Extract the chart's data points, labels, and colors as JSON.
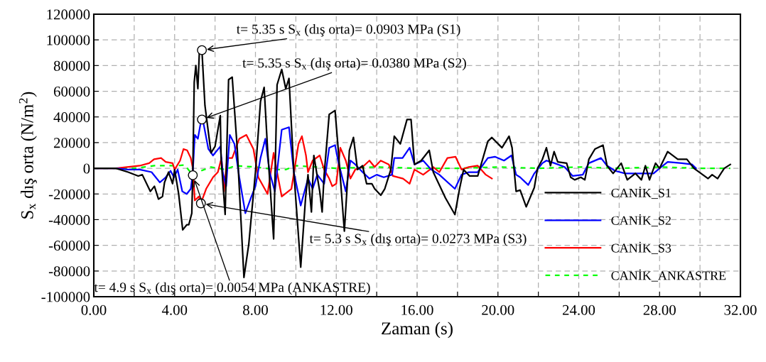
{
  "chart_data": {
    "type": "line",
    "xlabel": "Zaman (s)",
    "ylabel": "S$_{x}$ dış orta (N/m$^{2}$)",
    "xlim": [
      0,
      32
    ],
    "ylim": [
      -100000,
      120000
    ],
    "xticks": [
      {
        "value": 0,
        "label": "0.00"
      },
      {
        "value": 2,
        "label": null
      },
      {
        "value": 4,
        "label": "4.00"
      },
      {
        "value": 6,
        "label": null
      },
      {
        "value": 8,
        "label": "8.00"
      },
      {
        "value": 10,
        "label": null
      },
      {
        "value": 12,
        "label": "12.00"
      },
      {
        "value": 14,
        "label": null
      },
      {
        "value": 16,
        "label": "16.00"
      },
      {
        "value": 18,
        "label": null
      },
      {
        "value": 20,
        "label": "20.00"
      },
      {
        "value": 22,
        "label": null
      },
      {
        "value": 24,
        "label": "24.00"
      },
      {
        "value": 26,
        "label": null
      },
      {
        "value": 28,
        "label": "28.00"
      },
      {
        "value": 30,
        "label": null
      },
      {
        "value": 32,
        "label": "32.00"
      }
    ],
    "yticks": [
      -100000,
      -80000,
      -60000,
      -40000,
      -20000,
      0,
      20000,
      40000,
      60000,
      80000,
      100000,
      120000
    ],
    "grid": true,
    "legend": "lower right",
    "marker": "none",
    "series": [
      {
        "name": "CANİK_S1",
        "color": "#000000",
        "line_style": "solid",
        "x": [
          0,
          1.1,
          1.7,
          2.2,
          2.4,
          2.8,
          3.0,
          3.2,
          3.4,
          3.5,
          3.7,
          3.9,
          4.0,
          4.2,
          4.4,
          4.6,
          4.7,
          4.85,
          4.9,
          4.97,
          5.05,
          5.15,
          5.23,
          5.35,
          5.5,
          5.8,
          6.0,
          6.26,
          6.3,
          6.5,
          6.67,
          6.85,
          7.1,
          7.43,
          7.67,
          8.0,
          8.25,
          8.43,
          8.6,
          8.9,
          9.07,
          9.3,
          9.5,
          9.66,
          9.9,
          10.24,
          10.48,
          10.6,
          10.77,
          10.89,
          11.18,
          11.3,
          11.4,
          11.65,
          11.94,
          12.1,
          12.4,
          12.65,
          12.85,
          13.05,
          13.3,
          13.5,
          13.76,
          13.9,
          14.2,
          14.4,
          14.7,
          14.87,
          15.17,
          15.5,
          15.7,
          15.87,
          16.2,
          16.6,
          16.8,
          17.4,
          17.87,
          18.1,
          18.3,
          18.6,
          19.0,
          19.5,
          19.7,
          20.2,
          20.55,
          20.7,
          20.9,
          21.1,
          21.4,
          21.8,
          21.96,
          22.2,
          22.4,
          22.6,
          22.78,
          22.96,
          23.4,
          23.6,
          23.8,
          24.1,
          24.3,
          24.5,
          24.8,
          25.2,
          25.4,
          25.7,
          26.1,
          26.4,
          26.8,
          27.1,
          27.3,
          27.5,
          27.8,
          28.0,
          28.4,
          28.9,
          29.35,
          29.7,
          30.05,
          30.4,
          30.6,
          30.87,
          31.2,
          31.5
        ],
        "values": [
          0,
          0,
          -3000,
          -6000,
          -5000,
          -18000,
          -14000,
          -24000,
          -22000,
          -11000,
          -3000,
          -12000,
          -1000,
          -20000,
          -48000,
          -44000,
          -44000,
          -35000,
          -3000,
          67000,
          80000,
          62000,
          93000,
          92000,
          49000,
          12000,
          17000,
          41000,
          8000,
          -36000,
          69000,
          71000,
          15000,
          -85000,
          -59000,
          -3000,
          52000,
          63000,
          15000,
          -55000,
          65000,
          77000,
          62000,
          70000,
          -3000,
          -77000,
          -23000,
          -5000,
          -34000,
          10000,
          -18000,
          -34000,
          -5000,
          42000,
          45000,
          14000,
          -49000,
          14000,
          24000,
          -1000,
          2000,
          -12000,
          -12000,
          -16000,
          -21000,
          -16000,
          -1000,
          25000,
          19000,
          38000,
          38000,
          3000,
          6000,
          14000,
          -3000,
          -23000,
          -36000,
          -16000,
          -1000,
          -6000,
          -6000,
          21000,
          24000,
          16000,
          25000,
          16000,
          -18000,
          -17000,
          -30000,
          -15000,
          0,
          7000,
          16000,
          2000,
          13000,
          5000,
          4000,
          -7000,
          -9000,
          -7000,
          -9000,
          7000,
          15000,
          18000,
          2000,
          -4000,
          4000,
          -9000,
          -4000,
          -9000,
          2000,
          -9000,
          4000,
          0,
          13000,
          7000,
          7000,
          0,
          -4000,
          -8000,
          -5000,
          -8000,
          0,
          3000
        ]
      },
      {
        "name": "CANİK_S2",
        "color": "#0000ff",
        "line_style": "solid",
        "x": [
          0,
          1.1,
          1.7,
          2.27,
          2.86,
          3.27,
          3.56,
          3.8,
          3.97,
          4.15,
          4.38,
          4.6,
          4.8,
          4.9,
          5.0,
          5.15,
          5.32,
          5.44,
          5.67,
          5.9,
          6.26,
          6.38,
          6.55,
          6.73,
          6.96,
          7.2,
          7.5,
          7.8,
          8.0,
          8.25,
          8.49,
          8.7,
          8.96,
          9.3,
          9.66,
          9.9,
          10.24,
          10.6,
          10.83,
          11.06,
          11.4,
          11.65,
          11.94,
          12.1,
          12.47,
          12.7,
          12.94,
          13.3,
          13.64,
          14.0,
          14.35,
          14.76,
          14.87,
          15.28,
          15.63,
          15.87,
          16.3,
          16.7,
          17.1,
          17.87,
          18.2,
          18.56,
          19.0,
          19.5,
          19.85,
          20.3,
          20.67,
          20.9,
          21.1,
          21.5,
          21.8,
          22.2,
          22.4,
          22.8,
          23.3,
          23.7,
          24.2,
          24.5,
          25.1,
          25.4,
          25.8,
          26.3,
          27.0,
          27.7,
          28.0,
          28.4,
          29.1,
          29.6,
          29.8
        ],
        "values": [
          0,
          0,
          -1000,
          -1000,
          -3000,
          -11000,
          -7000,
          -2000,
          -7000,
          -1000,
          -18000,
          -20000,
          -16000,
          -3000,
          26000,
          23000,
          38000,
          34000,
          15000,
          10000,
          17000,
          -3000,
          -14000,
          26000,
          19000,
          -7000,
          -35000,
          -22000,
          -14000,
          8000,
          23000,
          -3000,
          -18000,
          30000,
          32000,
          -3000,
          -29000,
          -8000,
          -16000,
          -5000,
          -12000,
          16000,
          18000,
          5000,
          -18000,
          6000,
          3000,
          -3000,
          -8000,
          -5000,
          -7000,
          -5000,
          8000,
          8000,
          16000,
          3000,
          6000,
          -1000,
          -5000,
          -16000,
          -5000,
          -3000,
          -3000,
          8000,
          9000,
          6000,
          10000,
          -5000,
          -7000,
          -13000,
          -4000,
          4000,
          6000,
          4000,
          1000,
          -6000,
          -5000,
          4000,
          8000,
          2000,
          -2000,
          -4000,
          -4000,
          -4000,
          0,
          5000,
          4000,
          3000,
          0
        ]
      },
      {
        "name": "CANİK_S3",
        "color": "#ff0000",
        "line_style": "solid",
        "x": [
          0,
          1.1,
          2.27,
          2.74,
          2.98,
          3.33,
          3.56,
          3.9,
          4.0,
          4.27,
          4.44,
          4.62,
          4.8,
          4.9,
          5.0,
          5.2,
          5.3,
          5.56,
          5.9,
          6.14,
          6.32,
          6.44,
          6.6,
          6.85,
          7.2,
          7.55,
          7.9,
          8.14,
          8.6,
          8.9,
          9.07,
          9.3,
          9.78,
          10.13,
          10.3,
          10.5,
          10.6,
          10.83,
          11.18,
          11.4,
          11.65,
          11.8,
          12.0,
          12.2,
          12.47,
          12.7,
          12.94,
          13.3,
          13.64,
          13.9,
          14.2,
          14.6,
          14.8,
          15.3,
          15.63,
          15.87,
          16.3,
          16.8,
          17.1,
          17.5,
          17.9,
          18.2,
          18.56,
          19.0,
          19.4,
          19.7
        ],
        "values": [
          0,
          0,
          2000,
          4000,
          7000,
          8000,
          5000,
          4000,
          -1000,
          6000,
          15000,
          14000,
          8000,
          0,
          -25000,
          -22000,
          -27300,
          -16000,
          -7000,
          -3000,
          8000,
          -18000,
          8000,
          8000,
          23000,
          26000,
          15000,
          -7000,
          -20000,
          12000,
          -3000,
          -22000,
          -16000,
          19000,
          25000,
          10000,
          -3000,
          6000,
          10000,
          -1000,
          -8000,
          -14000,
          -12000,
          16000,
          6000,
          -8000,
          -1000,
          1000,
          6000,
          1000,
          6000,
          3000,
          -6000,
          -8000,
          -12000,
          -1000,
          -5000,
          1000,
          -3000,
          8000,
          9000,
          -1000,
          1000,
          2000,
          -5000,
          -8000
        ]
      },
      {
        "name": "CANİK_ANKASTRE",
        "color": "#00ff00",
        "line_style": "dashed",
        "x": [
          0,
          2.0,
          2.5,
          3.0,
          4.0,
          4.5,
          4.9,
          5.3,
          5.8,
          6.5,
          7.0,
          8.0,
          9.0,
          9.5,
          10.0,
          12.0,
          14.0,
          16.0,
          18.0,
          20.0,
          22.0,
          24.0,
          26.0,
          28.0,
          30.0,
          31.5
        ],
        "values": [
          0,
          0,
          1000,
          2000,
          2000,
          2500,
          -5400,
          -2000,
          1000,
          -1000,
          2000,
          1000,
          -1000,
          -1000,
          2000,
          0,
          1000,
          0,
          0,
          1000,
          0,
          1000,
          0,
          1000,
          0,
          0
        ]
      }
    ],
    "annotations": [
      {
        "text": "t= 5.35 s S$_{x}$ (dış orta)= 0.0903 MPa (S1)",
        "x": 5.35,
        "y": 92000
      },
      {
        "text": "t= 5.35 s S$_{x}$ (dış orta)= 0.0380 MPa (S2)",
        "x": 5.35,
        "y": 38000
      },
      {
        "text": "t= 5.3 s S$_{x}$ (dış orta)= 0.0273 MPa (S3)",
        "x": 5.3,
        "y": -27300
      },
      {
        "text": "t= 4.9 s S$_{x}$ (dış orta)= 0.0054 MPa (ANKASTRE)",
        "x": 4.9,
        "y": -5400
      }
    ]
  }
}
